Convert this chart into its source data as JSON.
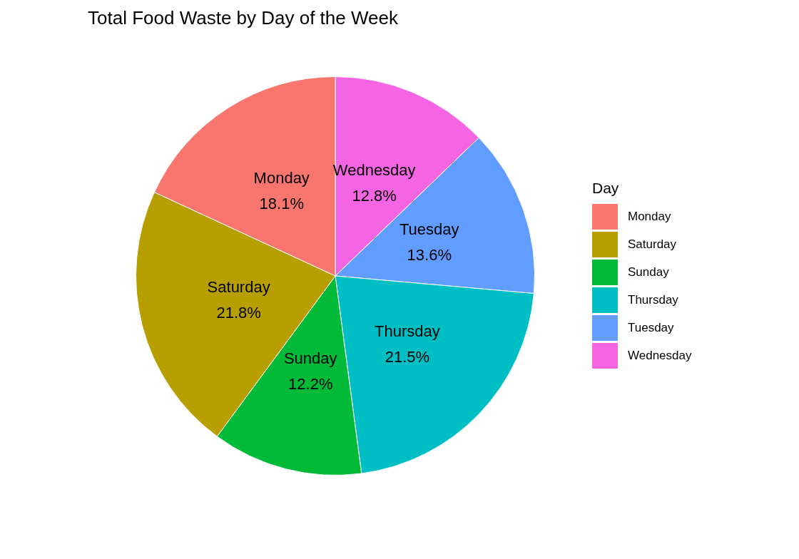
{
  "chart_data": {
    "type": "pie",
    "title": "Total Food Waste by Day of the Week",
    "legend_title": "Day",
    "legend": "right",
    "categories": [
      "Monday",
      "Saturday",
      "Sunday",
      "Thursday",
      "Tuesday",
      "Wednesday"
    ],
    "values": [
      18.1,
      21.8,
      12.2,
      21.5,
      13.6,
      12.8
    ],
    "value_labels": [
      "18.1%",
      "21.8%",
      "12.2%",
      "21.5%",
      "13.6%",
      "12.8%"
    ],
    "colors": [
      "#f8766d",
      "#b79f00",
      "#00ba38",
      "#00bfc4",
      "#619cff",
      "#f564e3"
    ]
  }
}
